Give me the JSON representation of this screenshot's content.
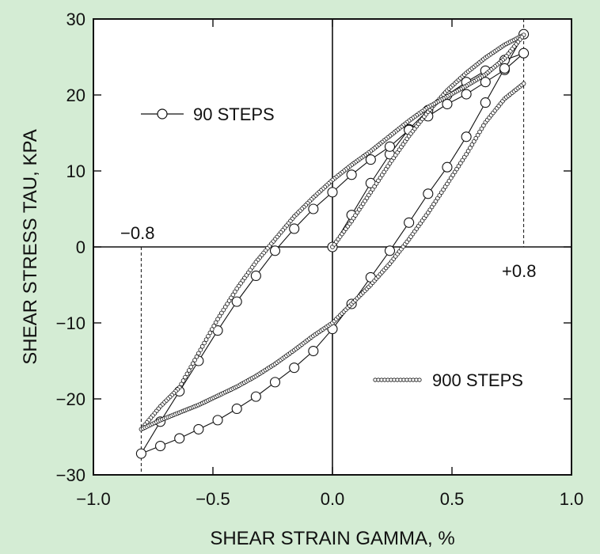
{
  "chart_data": {
    "type": "line",
    "xlabel": "SHEAR STRAIN GAMMA, %",
    "ylabel": "SHEAR STRESS TAU, KPA",
    "xlim": [
      -1.0,
      1.0
    ],
    "ylim": [
      -30,
      30
    ],
    "x_ticks": [
      -1.0,
      -0.5,
      0.0,
      0.5,
      1.0
    ],
    "x_tick_labels": [
      "−1.0",
      "−0.5",
      "0.0",
      "0.5",
      "1.0"
    ],
    "y_ticks": [
      -30,
      -20,
      -10,
      0,
      10,
      20,
      30
    ],
    "y_tick_labels": [
      "−30",
      "−20",
      "−10",
      "0",
      "10",
      "20",
      "30"
    ],
    "grid": false,
    "colors": {
      "background": "#d4ecd4",
      "plot_area": "#ffffff",
      "ink": "#111111"
    },
    "annotations": [
      {
        "text": "−0.8",
        "x": -0.8
      },
      {
        "text": "+0.8",
        "x": 0.8
      }
    ],
    "series": [
      {
        "name": "90 STEPS",
        "marker": "large-circle",
        "legend_position": "upper-left",
        "x": [
          0.0,
          0.08,
          0.16,
          0.24,
          0.32,
          0.4,
          0.48,
          0.56,
          0.64,
          0.72,
          0.8,
          0.72,
          0.64,
          0.56,
          0.48,
          0.4,
          0.32,
          0.24,
          0.16,
          0.08,
          0.0,
          -0.08,
          -0.16,
          -0.24,
          -0.32,
          -0.4,
          -0.48,
          -0.56,
          -0.64,
          -0.72,
          -0.8,
          -0.72,
          -0.64,
          -0.56,
          -0.48,
          -0.4,
          -0.32,
          -0.24,
          -0.16,
          -0.08,
          0.0,
          0.08,
          0.16,
          0.24,
          0.32,
          0.4,
          0.48,
          0.56,
          0.64,
          0.72,
          0.8
        ],
        "y": [
          0.0,
          4.2,
          8.4,
          12.2,
          15.5,
          18.0,
          20.0,
          21.7,
          23.2,
          24.6,
          25.5,
          23.3,
          21.7,
          20.1,
          18.8,
          17.2,
          15.4,
          13.2,
          11.5,
          9.5,
          7.2,
          5.0,
          2.4,
          -0.5,
          -3.8,
          -7.2,
          -11.0,
          -15.0,
          -19.0,
          -23.0,
          -27.2,
          -26.2,
          -25.2,
          -24.0,
          -22.8,
          -21.3,
          -19.7,
          -17.8,
          -15.9,
          -13.7,
          -10.8,
          -7.5,
          -4.0,
          -0.5,
          3.2,
          7.0,
          10.5,
          14.5,
          19.0,
          23.5,
          28.0
        ]
      },
      {
        "name": "900 STEPS",
        "marker": "small-circle",
        "legend_position": "lower-right",
        "x": [
          0.0,
          0.08,
          0.16,
          0.24,
          0.32,
          0.4,
          0.48,
          0.56,
          0.64,
          0.72,
          0.8,
          0.72,
          0.64,
          0.56,
          0.48,
          0.4,
          0.32,
          0.24,
          0.16,
          0.08,
          0.0,
          -0.08,
          -0.16,
          -0.24,
          -0.32,
          -0.4,
          -0.48,
          -0.56,
          -0.64,
          -0.72,
          -0.8,
          -0.72,
          -0.64,
          -0.56,
          -0.48,
          -0.4,
          -0.32,
          -0.24,
          -0.16,
          -0.08,
          0.0,
          0.08,
          0.16,
          0.24,
          0.32,
          0.4,
          0.48,
          0.56,
          0.64,
          0.72,
          0.8
        ],
        "y": [
          0.0,
          3.4,
          7.2,
          11.0,
          14.6,
          17.8,
          20.6,
          22.9,
          24.9,
          26.6,
          27.9,
          24.8,
          22.7,
          21.2,
          19.8,
          18.4,
          16.6,
          14.6,
          12.6,
          10.8,
          8.8,
          6.5,
          4.0,
          1.0,
          -2.0,
          -5.5,
          -9.5,
          -14.0,
          -18.5,
          -21.0,
          -24.0,
          -22.8,
          -21.8,
          -20.8,
          -19.6,
          -18.4,
          -17.0,
          -15.4,
          -13.6,
          -11.7,
          -10.0,
          -7.5,
          -5.0,
          -2.2,
          1.0,
          4.5,
          8.3,
          12.2,
          16.4,
          19.5,
          21.5
        ]
      }
    ]
  }
}
